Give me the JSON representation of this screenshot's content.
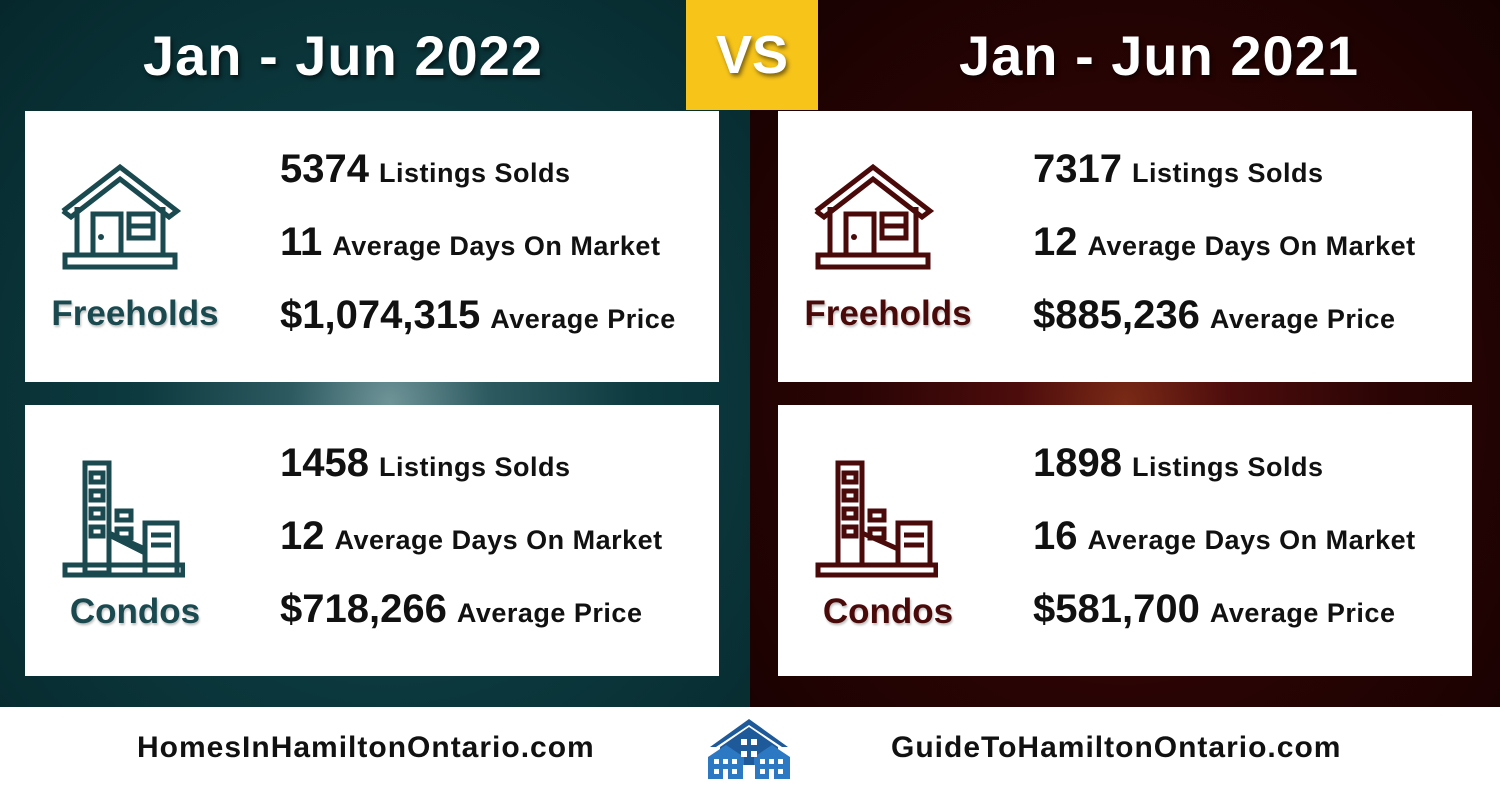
{
  "header": {
    "left_title": "Jan - Jun 2022",
    "vs": "VS",
    "right_title": "Jan - Jun 2021"
  },
  "colors": {
    "teal_panel": "#0c3a3f",
    "maroon_panel": "#2a0404",
    "vs_yellow": "#f7c41a",
    "teal_text": "#1a4a50",
    "maroon_text": "#4a0a0a"
  },
  "left": {
    "freeholds": {
      "label": "Freeholds",
      "icon": "house-icon",
      "stats": [
        {
          "value": "5374",
          "label": "Listings Solds"
        },
        {
          "value": "11",
          "label": "Average Days On Market"
        },
        {
          "value": "$1,074,315",
          "label": "Average Price"
        }
      ]
    },
    "condos": {
      "label": "Condos",
      "icon": "condo-building-icon",
      "stats": [
        {
          "value": "1458",
          "label": "Listings Solds"
        },
        {
          "value": "12",
          "label": "Average Days On Market"
        },
        {
          "value": "$718,266",
          "label": "Average Price"
        }
      ]
    }
  },
  "right": {
    "freeholds": {
      "label": "Freeholds",
      "icon": "house-icon",
      "stats": [
        {
          "value": "7317",
          "label": "Listings Solds"
        },
        {
          "value": "12",
          "label": "Average Days On Market"
        },
        {
          "value": "$885,236",
          "label": "Average Price"
        }
      ]
    },
    "condos": {
      "label": "Condos",
      "icon": "condo-building-icon",
      "stats": [
        {
          "value": "1898",
          "label": "Listings Solds"
        },
        {
          "value": "16",
          "label": "Average Days On Market"
        },
        {
          "value": "$581,700",
          "label": "Average Price"
        }
      ]
    }
  },
  "footer": {
    "left_site": "HomesInHamiltonOntario.com",
    "logo_icon": "houses-logo-icon",
    "right_site": "GuideToHamiltonOntario.com"
  }
}
